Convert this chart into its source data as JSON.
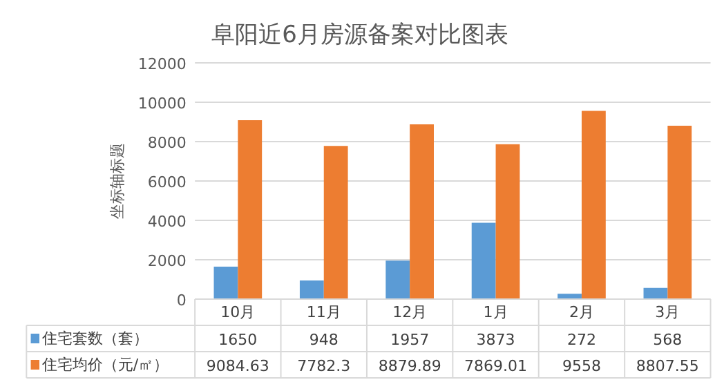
{
  "chart_data": {
    "type": "bar",
    "title": "阜阳近6月房源备案对比图表",
    "ylabel": "坐标轴标题",
    "categories": [
      "10月",
      "11月",
      "12月",
      "1月",
      "2月",
      "3月"
    ],
    "series": [
      {
        "name": "住宅套数（套）",
        "color": "#5b9bd5",
        "values": [
          1650,
          948,
          1957,
          3873,
          272,
          568
        ]
      },
      {
        "name": "住宅均价（元/㎡）",
        "color": "#ed7d31",
        "values": [
          9084.63,
          7782.3,
          8879.89,
          7869.01,
          9558,
          8807.55
        ]
      }
    ],
    "ylim": [
      0,
      12000
    ],
    "yticks": [
      0,
      2000,
      4000,
      6000,
      8000,
      10000,
      12000
    ],
    "grid": "y",
    "data_labels": true,
    "legend": "bottom"
  }
}
